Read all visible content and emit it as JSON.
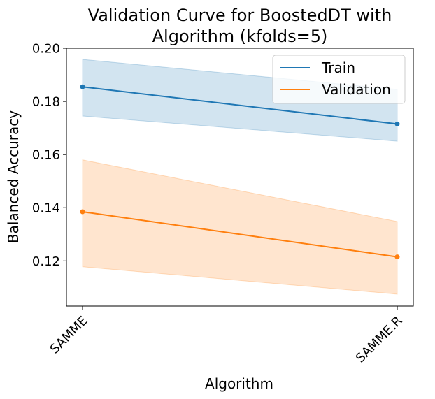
{
  "chart_data": {
    "type": "line",
    "title_line1": "Validation Curve for BoostedDT with",
    "title_line2": "Algorithm (kfolds=5)",
    "xlabel": "Algorithm",
    "ylabel": "Balanced Accuracy",
    "categories": [
      "SAMME",
      "SAMME.R"
    ],
    "ylim": [
      0.103,
      0.2
    ],
    "yticks": [
      0.12,
      0.14,
      0.16,
      0.18,
      0.2
    ],
    "ytick_labels": [
      "0.12",
      "0.14",
      "0.16",
      "0.18",
      "0.20"
    ],
    "grid": false,
    "legend_position": "top-right",
    "series": [
      {
        "name": "Train",
        "color": "#1f77b4",
        "values": [
          0.1855,
          0.1715
        ],
        "band_low": [
          0.1745,
          0.165
        ],
        "band_high": [
          0.1958,
          0.1845
        ]
      },
      {
        "name": "Validation",
        "color": "#ff7f0e",
        "values": [
          0.1385,
          0.1215
        ],
        "band_low": [
          0.1178,
          0.1075
        ],
        "band_high": [
          0.158,
          0.1348
        ]
      }
    ]
  }
}
